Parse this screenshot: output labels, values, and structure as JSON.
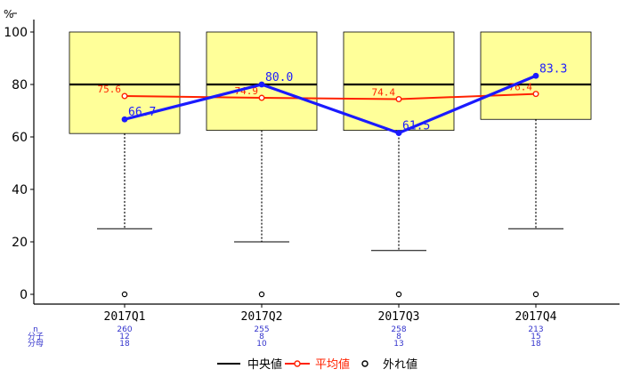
{
  "chart_data": {
    "type": "box",
    "y_unit": "%",
    "ylim": [
      0,
      100
    ],
    "yticks": [
      0,
      20,
      40,
      60,
      80,
      100
    ],
    "categories": [
      "2017Q1",
      "2017Q2",
      "2017Q3",
      "2017Q4"
    ],
    "boxes": [
      {
        "q1": 61.3,
        "median": 80,
        "q3": 100,
        "whisker_low": 25,
        "whisker_high": 100,
        "outliers": [
          0
        ]
      },
      {
        "q1": 62.5,
        "median": 80,
        "q3": 100,
        "whisker_low": 20,
        "whisker_high": 100,
        "outliers": [
          0
        ]
      },
      {
        "q1": 62.5,
        "median": 80,
        "q3": 100,
        "whisker_low": 16.7,
        "whisker_high": 100,
        "outliers": [
          0
        ]
      },
      {
        "q1": 66.7,
        "median": 80,
        "q3": 100,
        "whisker_low": 25,
        "whisker_high": 100,
        "outliers": [
          0
        ]
      }
    ],
    "mean_series": {
      "values": [
        75.6,
        74.9,
        74.4,
        76.4
      ],
      "labels": [
        "75.6",
        "74.9",
        "74.4",
        "76.4"
      ],
      "color": "#ff2200"
    },
    "blue_series": {
      "values": [
        66.7,
        80.0,
        61.5,
        83.3
      ],
      "labels": [
        "66.7",
        "80.0",
        "61.5",
        "83.3"
      ],
      "color": "#1a1aff"
    },
    "box_fill": "#ffff99",
    "stats": {
      "row_labels": [
        "n",
        "分子",
        "分母"
      ],
      "columns": [
        [
          "260",
          "12",
          "18"
        ],
        [
          "255",
          "8",
          "10"
        ],
        [
          "258",
          "8",
          "13"
        ],
        [
          "213",
          "15",
          "18"
        ]
      ],
      "color": "#3333cc"
    },
    "legend": {
      "position": "bottom",
      "items": [
        {
          "label": "中央値",
          "kind": "median-line",
          "color": "#000000"
        },
        {
          "label": "平均値",
          "kind": "mean-line-point",
          "color": "#ff2200"
        },
        {
          "label": "外れ値",
          "kind": "outlier-point",
          "color": "#000000"
        }
      ]
    },
    "grid": false
  }
}
